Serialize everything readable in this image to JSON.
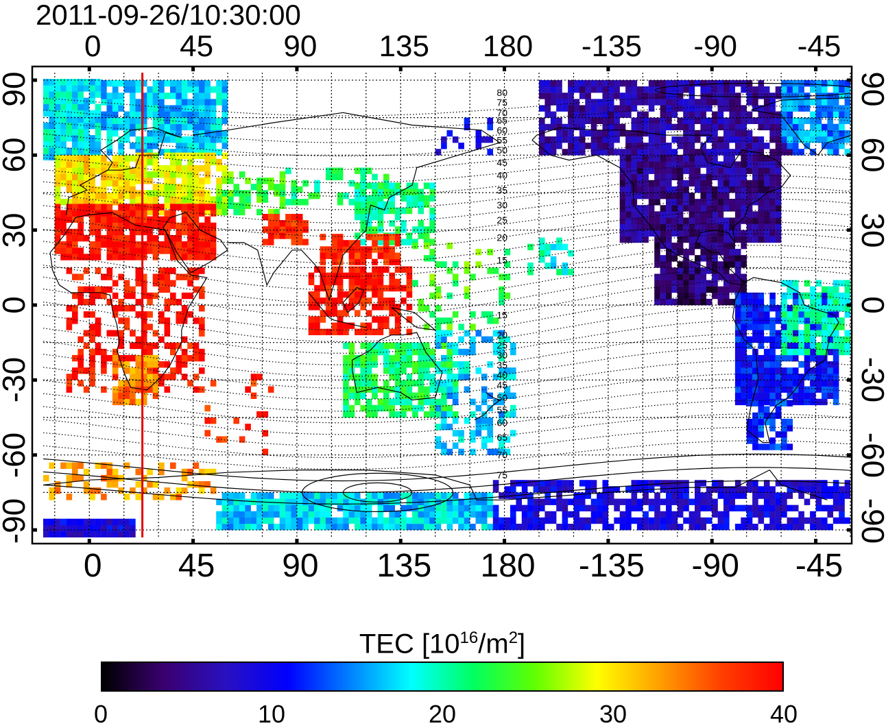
{
  "title": "2011-09-26/10:30:00",
  "map": {
    "type": "global ionospheric TEC map",
    "x_ticks": [
      0,
      45,
      90,
      135,
      180,
      -135,
      -90,
      -45
    ],
    "x_tick_labels": [
      "0",
      "45",
      "90",
      "135",
      "180",
      "-135",
      "-90",
      "-45"
    ],
    "y_ticks": [
      90,
      60,
      30,
      0,
      -30,
      -60,
      -90
    ],
    "y_tick_labels": [
      "90",
      "60",
      "30",
      "0",
      "-30",
      "-60",
      "-90"
    ],
    "lon_range": [
      -20,
      330
    ],
    "lat_range": [
      -93,
      93
    ],
    "grid": true,
    "marker_line_longitude": 23,
    "marker_line_color": "#e00000",
    "contour_labels": [
      "80",
      "75",
      "70",
      "65",
      "60",
      "55",
      "50",
      "45",
      "40",
      "35",
      "30",
      "25",
      "20",
      "15",
      "15",
      "20",
      "25",
      "30",
      "35",
      "40",
      "45",
      "50",
      "55",
      "60",
      "65",
      "70",
      "75"
    ]
  },
  "colorbar": {
    "title_text": "TEC  [10",
    "title_sup1": "16",
    "title_mid": "/m",
    "title_sup2": "2",
    "title_end": "]",
    "min": 0,
    "max": 40,
    "tick_values": [
      0,
      10,
      20,
      30,
      40
    ],
    "tick_labels": [
      "0",
      "10",
      "20",
      "30",
      "40"
    ],
    "colors": [
      "#000000",
      "#3a0070",
      "#2a10c0",
      "#0000ff",
      "#0080ff",
      "#00ffff",
      "#00ff60",
      "#60ff00",
      "#ffff00",
      "#ffa000",
      "#ff4000",
      "#ff0000"
    ]
  }
}
